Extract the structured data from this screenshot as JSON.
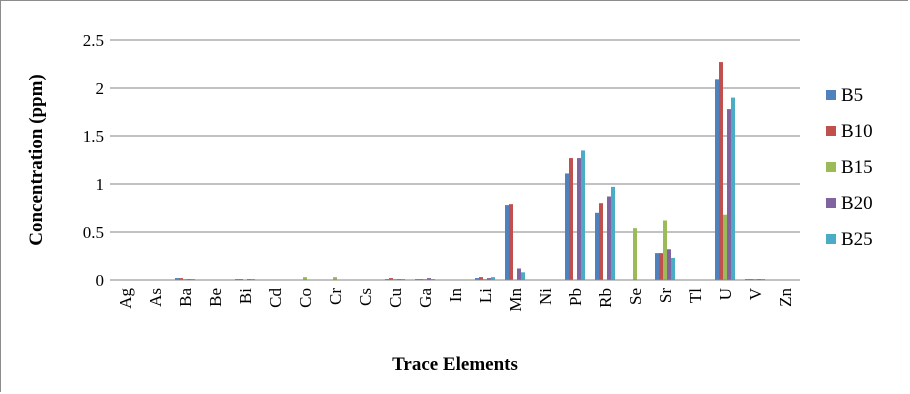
{
  "chart_data": {
    "type": "bar",
    "title": "",
    "xlabel": "Trace Elements",
    "ylabel": "Concentration (ppm)",
    "ylim": [
      0,
      2.5
    ],
    "yticks": [
      "0",
      "0.5",
      "1",
      "1.5",
      "2",
      "2.5"
    ],
    "grid": true,
    "legend_position": "right",
    "categories": [
      "Ag",
      "As",
      "Ba",
      "Be",
      "Bi",
      "Cd",
      "Co",
      "Cr",
      "Cs",
      "Cu",
      "Ga",
      "In",
      "Li",
      "Mn",
      "Ni",
      "Pb",
      "Rb",
      "Se",
      "Sr",
      "Tl",
      "U",
      "V",
      "Zn"
    ],
    "series": [
      {
        "name": "B5",
        "color": "#4f81bd",
        "values": [
          0,
          0,
          0.02,
          0,
          0.01,
          0,
          0,
          0,
          0,
          0.01,
          0.01,
          0,
          0.02,
          0.78,
          0,
          1.11,
          0.7,
          0,
          0.28,
          0,
          2.09,
          0.01,
          0.005
        ]
      },
      {
        "name": "B10",
        "color": "#c0504d",
        "values": [
          0,
          0,
          0.02,
          0,
          0.01,
          0,
          0,
          0,
          0,
          0.02,
          0.01,
          0,
          0.03,
          0.79,
          0,
          1.27,
          0.8,
          0,
          0.28,
          0,
          2.27,
          0.01,
          0.005
        ]
      },
      {
        "name": "B15",
        "color": "#9bbb59",
        "values": [
          0,
          0,
          0.01,
          0,
          0.005,
          0,
          0.03,
          0.03,
          0,
          0.01,
          0.01,
          0,
          0.01,
          0,
          0,
          0,
          0,
          0.54,
          0.62,
          0,
          0.68,
          0.01,
          0
        ]
      },
      {
        "name": "B20",
        "color": "#8064a2",
        "values": [
          0,
          0,
          0.01,
          0,
          0.01,
          0,
          0,
          0,
          0,
          0.01,
          0.02,
          0,
          0.02,
          0.12,
          0,
          1.27,
          0.87,
          0,
          0.32,
          0,
          1.78,
          0.01,
          0.005
        ]
      },
      {
        "name": "B25",
        "color": "#4bacc6",
        "values": [
          0,
          0,
          0.01,
          0,
          0.01,
          0,
          0,
          0,
          0,
          0.01,
          0.01,
          0,
          0.03,
          0.08,
          0,
          1.35,
          0.97,
          0,
          0.23,
          0,
          1.9,
          0.01,
          0.005
        ]
      }
    ]
  }
}
